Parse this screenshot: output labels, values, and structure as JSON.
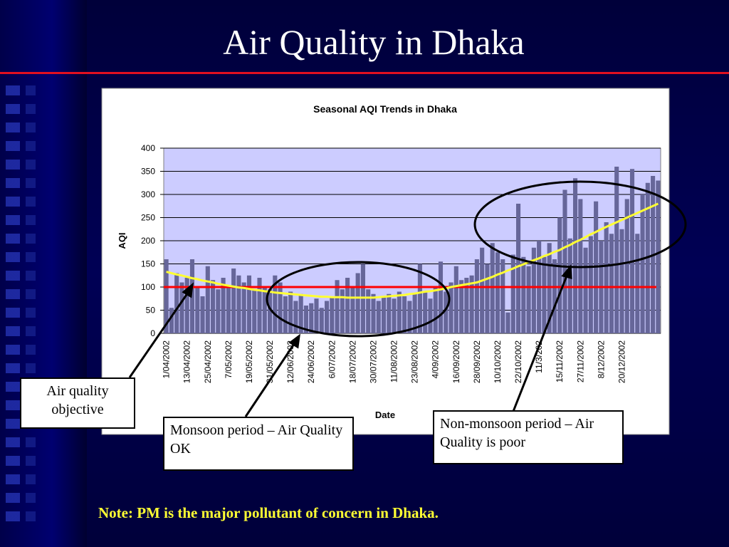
{
  "slide": {
    "title": "Air Quality in Dhaka",
    "callouts": [
      "Air quality objective",
      "Monsoon period – Air Quality OK",
      "Non-monsoon period – Air Quality is poor"
    ],
    "note": "Note: PM is the major pollutant of concern in Dhaka."
  },
  "chart_data": {
    "type": "bar",
    "title": "Seasonal AQI Trends in Dhaka",
    "x_label": "Date",
    "y_label": "AQI",
    "categories": [
      "1/04/2002",
      null,
      null,
      null,
      "13/04/2002",
      null,
      null,
      null,
      "25/04/2002",
      null,
      null,
      null,
      "7/05/2002",
      null,
      null,
      null,
      "19/05/2002",
      null,
      null,
      null,
      "31/05/2002",
      null,
      null,
      null,
      "12/06/2002",
      null,
      null,
      null,
      "24/06/2002",
      null,
      null,
      null,
      "6/07/2002",
      null,
      null,
      null,
      "18/07/2002",
      null,
      null,
      null,
      "30/07/2002",
      null,
      null,
      null,
      "11/08/2002",
      null,
      null,
      null,
      "23/08/2002",
      null,
      null,
      null,
      "4/09/2002",
      null,
      null,
      null,
      "16/09/2002",
      null,
      null,
      null,
      "28/09/2002",
      null,
      null,
      null,
      "10/10/2002",
      null,
      null,
      null,
      "22/10/2002",
      null,
      null,
      null,
      "11/3/202",
      null,
      null,
      null,
      "15/11/2002",
      null,
      null,
      null,
      "27/11/2002",
      null,
      null,
      null,
      "8/12/2002",
      null,
      null,
      null,
      "20/12/2002",
      null,
      null,
      null,
      null,
      null,
      null,
      null
    ],
    "series": [
      {
        "color": "#666699",
        "values": [
          160,
          55,
          130,
          110,
          120,
          160,
          100,
          80,
          145,
          115,
          95,
          120,
          100,
          140,
          125,
          110,
          125,
          95,
          120,
          100,
          95,
          125,
          110,
          80,
          90,
          70,
          85,
          60,
          65,
          75,
          55,
          70,
          80,
          115,
          95,
          120,
          100,
          130,
          150,
          95,
          85,
          70,
          80,
          85,
          75,
          90,
          80,
          70,
          85,
          150,
          90,
          75,
          100,
          155,
          90,
          110,
          145,
          115,
          120,
          125,
          160,
          185,
          150,
          195,
          175,
          160,
          45,
          170,
          280,
          165,
          145,
          185,
          200,
          165,
          195,
          160,
          250,
          310,
          205,
          335,
          290,
          185,
          210,
          285,
          200,
          240,
          215,
          360,
          225,
          290,
          355,
          215,
          300,
          325,
          340,
          330
        ]
      }
    ],
    "trend": {
      "color": "#ffff33",
      "values": [
        133,
        130,
        127,
        125,
        122,
        119,
        117,
        114,
        112,
        110,
        107,
        105,
        103,
        101,
        99,
        98,
        96,
        94,
        93,
        91,
        90,
        88,
        87,
        86,
        85,
        84,
        83,
        82,
        81,
        80,
        79,
        79,
        78,
        78,
        78,
        77,
        77,
        77,
        77,
        77,
        77,
        78,
        79,
        80,
        81,
        82,
        83,
        85,
        86,
        88,
        90,
        91,
        93,
        95,
        97,
        100,
        102,
        104,
        106,
        108,
        110,
        114,
        118,
        122,
        127,
        131,
        136,
        140,
        145,
        149,
        154,
        158,
        162,
        167,
        171,
        176,
        180,
        186,
        191,
        197,
        202,
        208,
        214,
        219,
        225,
        230,
        235,
        240,
        245,
        250,
        255,
        260,
        265,
        270,
        275,
        280
      ]
    },
    "reference_line": {
      "value": 100,
      "color": "#ff0000"
    },
    "ylim": [
      0,
      400
    ],
    "yticks": [
      0,
      50,
      100,
      150,
      200,
      250,
      300,
      350,
      400
    ],
    "grid": true
  }
}
